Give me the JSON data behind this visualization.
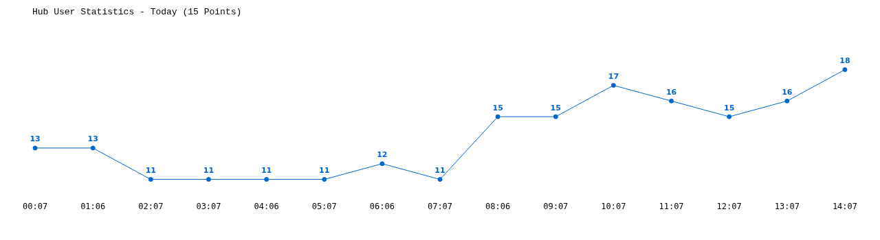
{
  "chart_data": {
    "type": "line",
    "title": "Hub User Statistics - Today (15 Points)",
    "categories": [
      "00:07",
      "01:06",
      "02:07",
      "03:07",
      "04:06",
      "05:07",
      "06:06",
      "07:07",
      "08:06",
      "09:07",
      "10:07",
      "11:07",
      "12:07",
      "13:07",
      "14:07"
    ],
    "series": [
      {
        "color": "#0066cc",
        "values": [
          13,
          13,
          11,
          11,
          11,
          11,
          12,
          11,
          15,
          15,
          17,
          16,
          15,
          16,
          18
        ]
      }
    ],
    "data_labels": true,
    "marker": "circle",
    "line_style": "solid",
    "grid": false,
    "legend": false
  }
}
